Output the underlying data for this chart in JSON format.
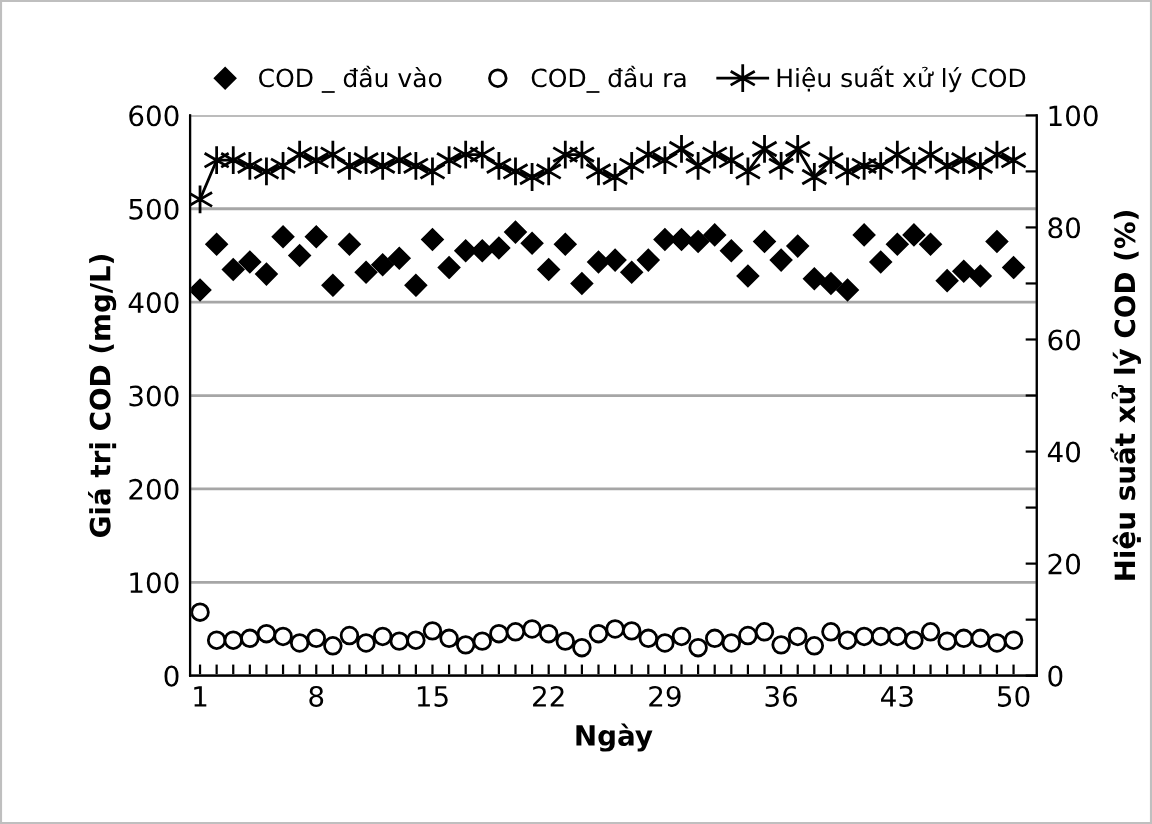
{
  "chart_data": {
    "type": "scatter",
    "xlabel": "Ngày",
    "ylabel": "Giá trị COD (mg/L)",
    "y2label": "Hiệu suất xử lý COD (%)",
    "x": [
      1,
      2,
      3,
      4,
      5,
      6,
      7,
      8,
      9,
      10,
      11,
      12,
      13,
      14,
      15,
      16,
      17,
      18,
      19,
      20,
      21,
      22,
      23,
      24,
      25,
      26,
      27,
      28,
      29,
      30,
      31,
      32,
      33,
      34,
      35,
      36,
      37,
      38,
      39,
      40,
      41,
      42,
      43,
      44,
      45,
      46,
      47,
      48,
      49,
      50
    ],
    "series": [
      {
        "name": "COD _ đầu vào",
        "marker": "diamond",
        "color": "#000000",
        "values": [
          413,
          462,
          435,
          443,
          430,
          470,
          450,
          470,
          418,
          462,
          432,
          440,
          447,
          418,
          467,
          437,
          455,
          455,
          458,
          475,
          463,
          435,
          462,
          420,
          443,
          445,
          432,
          445,
          467,
          467,
          465,
          472,
          455,
          428,
          465,
          445,
          460,
          425,
          420,
          413,
          472,
          443,
          462,
          472,
          462,
          423,
          433,
          428,
          465,
          437
        ]
      },
      {
        "name": "COD_ đầu ra",
        "marker": "circle",
        "color": "#000000",
        "values": [
          68,
          38,
          38,
          40,
          45,
          42,
          35,
          40,
          32,
          43,
          35,
          42,
          37,
          38,
          48,
          40,
          33,
          37,
          45,
          47,
          50,
          45,
          37,
          30,
          45,
          50,
          48,
          40,
          35,
          42,
          30,
          40,
          35,
          43,
          47,
          33,
          42,
          32,
          47,
          38,
          42,
          42,
          42,
          38,
          47,
          37,
          40,
          40,
          35,
          38
        ]
      },
      {
        "name": "Hiệu suất xử lý COD",
        "type": "line",
        "marker": "cross",
        "axis": "y2",
        "color": "#000000",
        "values": [
          85,
          92,
          92,
          91,
          90,
          91,
          93,
          92,
          93,
          91,
          92,
          91,
          92,
          91,
          90,
          92,
          93,
          93,
          91,
          90,
          89,
          90,
          93,
          93,
          90,
          89,
          91,
          93,
          92,
          94,
          91,
          93,
          92,
          90,
          94,
          91,
          94,
          89,
          92,
          90,
          91,
          91,
          93,
          91,
          93,
          91,
          92,
          91,
          93,
          92
        ]
      }
    ],
    "xlim": [
      0.4,
      51.4
    ],
    "xticks": [
      1,
      {
        "value": 2,
        "label": null
      },
      {
        "value": 3,
        "label": null
      },
      {
        "value": 4,
        "label": null
      },
      {
        "value": 5,
        "label": null
      },
      {
        "value": 6,
        "label": null
      },
      {
        "value": 7,
        "label": null
      },
      8,
      {
        "value": 9,
        "label": null
      },
      {
        "value": 10,
        "label": null
      },
      {
        "value": 11,
        "label": null
      },
      {
        "value": 12,
        "label": null
      },
      {
        "value": 13,
        "label": null
      },
      {
        "value": 14,
        "label": null
      },
      15,
      {
        "value": 16,
        "label": null
      },
      {
        "value": 17,
        "label": null
      },
      {
        "value": 18,
        "label": null
      },
      {
        "value": 19,
        "label": null
      },
      {
        "value": 20,
        "label": null
      },
      {
        "value": 21,
        "label": null
      },
      22,
      {
        "value": 23,
        "label": null
      },
      {
        "value": 24,
        "label": null
      },
      {
        "value": 25,
        "label": null
      },
      {
        "value": 26,
        "label": null
      },
      {
        "value": 27,
        "label": null
      },
      {
        "value": 28,
        "label": null
      },
      29,
      {
        "value": 30,
        "label": null
      },
      {
        "value": 31,
        "label": null
      },
      {
        "value": 32,
        "label": null
      },
      {
        "value": 33,
        "label": null
      },
      {
        "value": 34,
        "label": null
      },
      {
        "value": 35,
        "label": null
      },
      36,
      {
        "value": 37,
        "label": null
      },
      {
        "value": 38,
        "label": null
      },
      {
        "value": 39,
        "label": null
      },
      {
        "value": 40,
        "label": null
      },
      {
        "value": 41,
        "label": null
      },
      {
        "value": 42,
        "label": null
      },
      43,
      {
        "value": 44,
        "label": null
      },
      {
        "value": 45,
        "label": null
      },
      {
        "value": 46,
        "label": null
      },
      {
        "value": 47,
        "label": null
      },
      {
        "value": 48,
        "label": null
      },
      {
        "value": 49,
        "label": null
      },
      50
    ],
    "ylim": [
      0,
      600
    ],
    "yticks": [
      0,
      100,
      200,
      300,
      400,
      500,
      600
    ],
    "y2lim": [
      0,
      100
    ],
    "y2ticks": [
      0,
      {
        "value": 10,
        "label": null
      },
      20,
      {
        "value": 30,
        "label": null
      },
      40,
      {
        "value": 50,
        "label": null
      },
      60,
      {
        "value": 70,
        "label": null
      },
      80,
      {
        "value": 90,
        "label": null
      },
      100
    ],
    "grid": "y",
    "legend": "top"
  }
}
